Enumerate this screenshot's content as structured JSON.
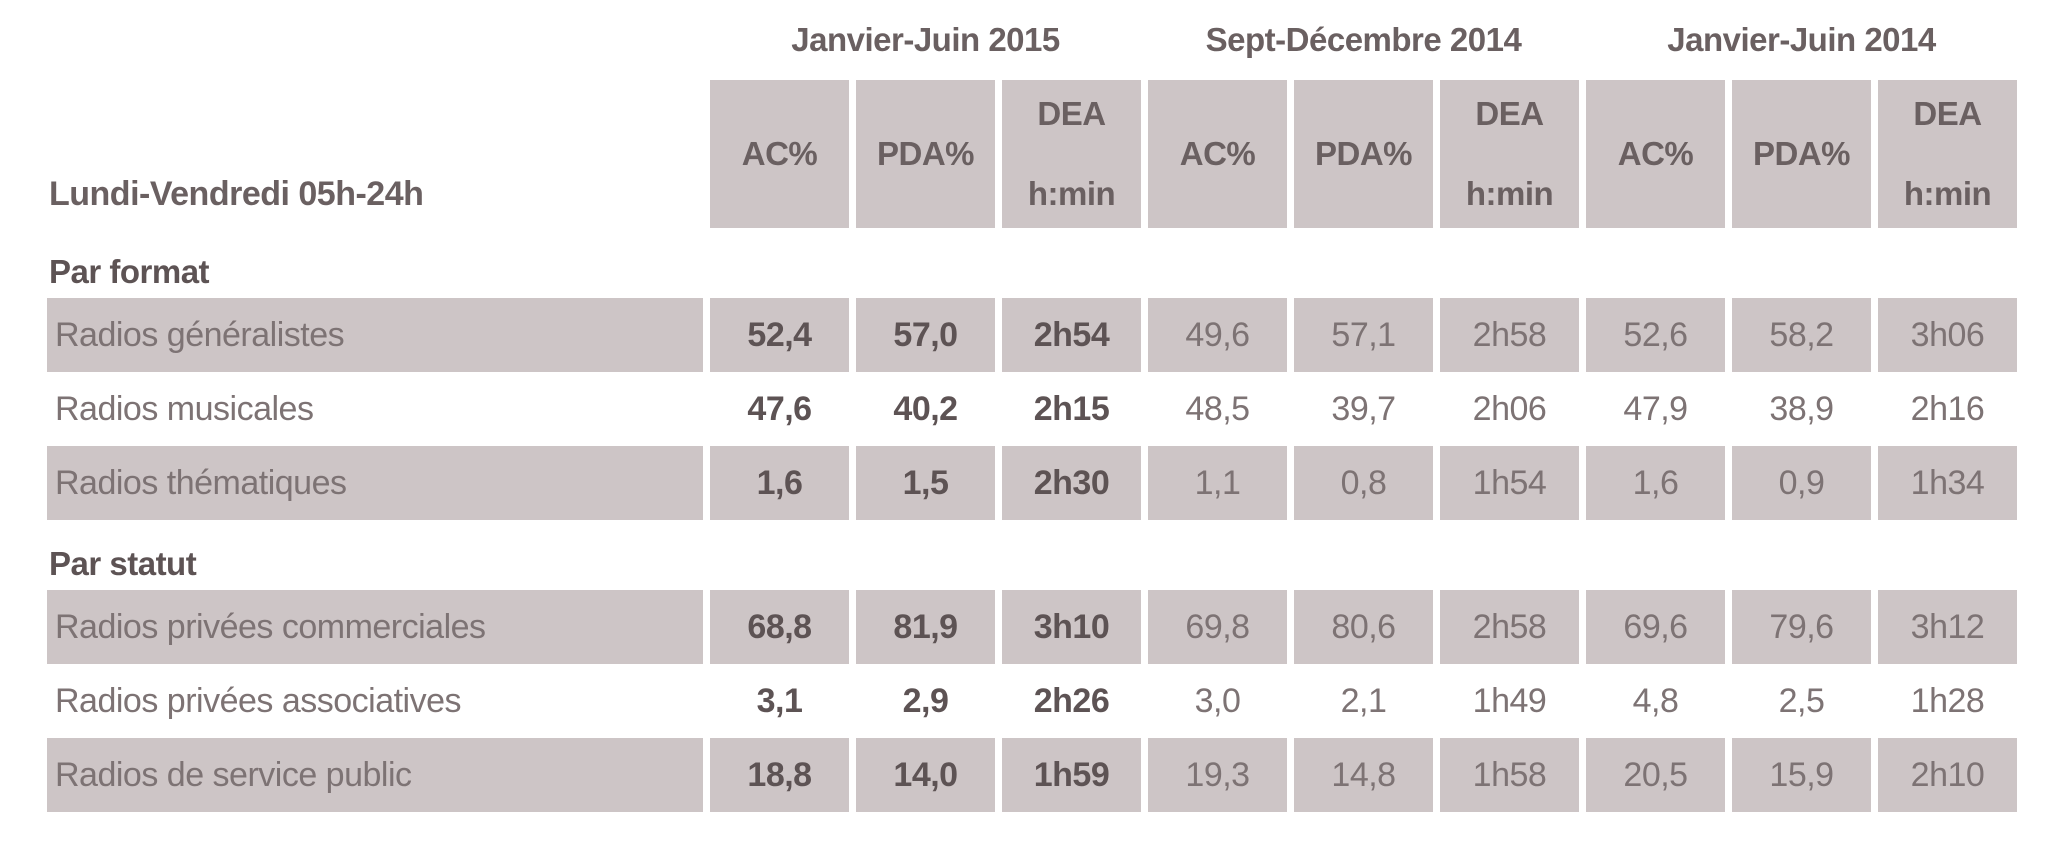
{
  "chart_data": {
    "type": "table",
    "title": "Lundi-Vendredi 05h-24h",
    "periods": [
      "Janvier-Juin 2015",
      "Sept-Décembre 2014",
      "Janvier-Juin 2014"
    ],
    "metric_headers": {
      "ac": "AC%",
      "pda": "PDA%",
      "dea_line1": "DEA",
      "dea_line2": "h:min"
    },
    "columns_per_period": [
      "AC%",
      "PDA%",
      "DEA h:min"
    ],
    "sections": [
      {
        "title": "Par format",
        "rows": [
          {
            "label": "Radios généralistes",
            "shaded": true,
            "values": [
              "52,4",
              "57,0",
              "2h54",
              "49,6",
              "57,1",
              "2h58",
              "52,6",
              "58,2",
              "3h06"
            ]
          },
          {
            "label": "Radios musicales",
            "shaded": false,
            "values": [
              "47,6",
              "40,2",
              "2h15",
              "48,5",
              "39,7",
              "2h06",
              "47,9",
              "38,9",
              "2h16"
            ]
          },
          {
            "label": "Radios thématiques",
            "shaded": true,
            "values": [
              "1,6",
              "1,5",
              "2h30",
              "1,1",
              "0,8",
              "1h54",
              "1,6",
              "0,9",
              "1h34"
            ]
          }
        ]
      },
      {
        "title": "Par statut",
        "rows": [
          {
            "label": "Radios privées commerciales",
            "shaded": true,
            "values": [
              "68,8",
              "81,9",
              "3h10",
              "69,8",
              "80,6",
              "2h58",
              "69,6",
              "79,6",
              "3h12"
            ]
          },
          {
            "label": "Radios privées associatives",
            "shaded": false,
            "values": [
              "3,1",
              "2,9",
              "2h26",
              "3,0",
              "2,1",
              "1h49",
              "4,8",
              "2,5",
              "1h28"
            ]
          },
          {
            "label": "Radios de service public",
            "shaded": true,
            "values": [
              "18,8",
              "14,0",
              "1h59",
              "19,3",
              "14,8",
              "1h58",
              "20,5",
              "15,9",
              "2h10"
            ]
          }
        ]
      }
    ],
    "layout": {
      "bold_value_columns": [
        0,
        1,
        2
      ],
      "shaded_cell_color": "#cdc5c6",
      "text_color": "#7d7374",
      "bold_text_color": "#5d5354",
      "header_text_color": "#6a6061",
      "grid": false,
      "legend": false
    }
  }
}
